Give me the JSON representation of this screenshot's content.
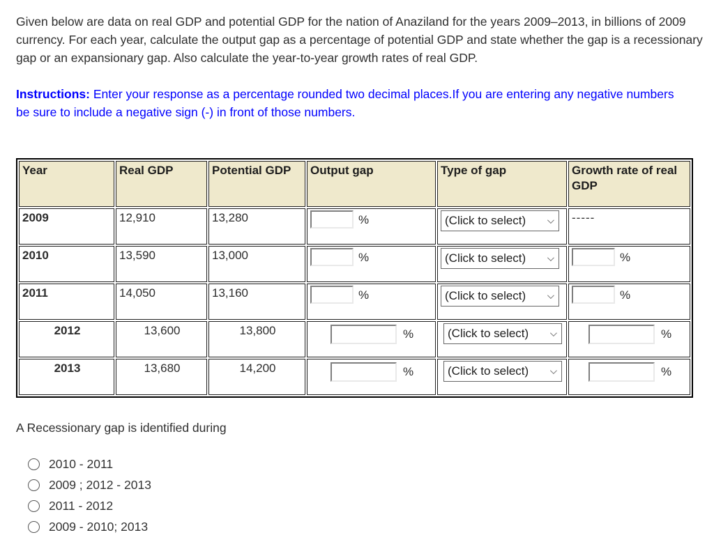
{
  "intro": "Given below are data on real GDP and potential GDP for the nation of Anaziland for the years 2009–2013, in billions of 2009 currency. For each year, calculate the output gap as a percentage of potential GDP and state whether the gap is a recessionary gap or an expansionary gap. Also calculate the year-to-year growth rates of real GDP.",
  "instructions": {
    "label": "Instructions:",
    "text": " Enter your response as a percentage rounded two decimal places.If you are entering any negative numbers be sure to include a negative sign (-) in front of those numbers."
  },
  "table": {
    "headers": [
      "Year",
      "Real GDP",
      "Potential GDP",
      "Output gap",
      "Type of gap",
      "Growth rate of real GDP"
    ],
    "select_placeholder": "(Click to select)",
    "percent_sign": "%",
    "no_growth_placeholder": "-----",
    "rows": [
      {
        "year": "2009",
        "real_gdp": "12,910",
        "potential_gdp": "13,280",
        "output_gap_value": "",
        "type_of_gap": "(Click to select)",
        "growth_rate_value": null,
        "centered": false
      },
      {
        "year": "2010",
        "real_gdp": "13,590",
        "potential_gdp": "13,000",
        "output_gap_value": "",
        "type_of_gap": "(Click to select)",
        "growth_rate_value": "",
        "centered": false
      },
      {
        "year": "2011",
        "real_gdp": "14,050",
        "potential_gdp": "13,160",
        "output_gap_value": "",
        "type_of_gap": "(Click to select)",
        "growth_rate_value": "",
        "centered": false
      },
      {
        "year": "2012",
        "real_gdp": "13,600",
        "potential_gdp": "13,800",
        "output_gap_value": "",
        "type_of_gap": "(Click to select)",
        "growth_rate_value": "",
        "centered": true
      },
      {
        "year": "2013",
        "real_gdp": "13,680",
        "potential_gdp": "14,200",
        "output_gap_value": "",
        "type_of_gap": "(Click to select)",
        "growth_rate_value": "",
        "centered": true
      }
    ]
  },
  "question": "A Recessionary gap is identified during",
  "options": [
    "2010 - 2011",
    "2009 ; 2012 - 2013",
    "2011 - 2012",
    "2009 - 2010; 2013"
  ],
  "colors": {
    "instructions_blue": "#0000fe",
    "header_background": "#efe9cc",
    "table_border": "#000000",
    "text": "#2f2f2f"
  }
}
